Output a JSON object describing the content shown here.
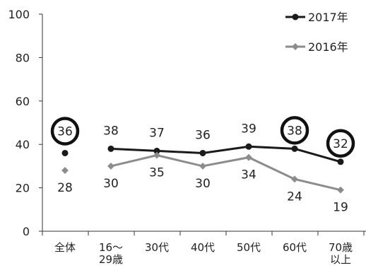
{
  "chart_data": {
    "type": "line",
    "categories": [
      "全体",
      "16〜29歳",
      "30代",
      "40代",
      "50代",
      "60代",
      "70歳以上"
    ],
    "category_display": [
      [
        "全体"
      ],
      [
        "16〜",
        "29歳"
      ],
      [
        "30代"
      ],
      [
        "40代"
      ],
      [
        "50代"
      ],
      [
        "60代"
      ],
      [
        "70歳",
        "以上"
      ]
    ],
    "ylim": [
      0,
      100
    ],
    "yticks": [
      0,
      20,
      40,
      60,
      80,
      100
    ],
    "grid": false,
    "legend_position": "top-right",
    "series": [
      {
        "name": "2017年",
        "color": "#1a1a1a",
        "values": [
          36,
          38,
          37,
          36,
          39,
          38,
          32
        ],
        "labels": [
          "36",
          "38",
          "37",
          "36",
          "39",
          "38",
          "32"
        ],
        "line_from_index": 1
      },
      {
        "name": "2016年",
        "color": "#8c8c8c",
        "values": [
          28,
          30,
          35,
          30,
          34,
          24,
          19
        ],
        "labels": [
          "28",
          "30",
          "35",
          "30",
          "34",
          "24",
          "19"
        ],
        "line_from_index": 1
      }
    ],
    "highlighted_labels": [
      {
        "series": 0,
        "index": 0
      },
      {
        "series": 0,
        "index": 5
      },
      {
        "series": 0,
        "index": 6
      }
    ]
  }
}
